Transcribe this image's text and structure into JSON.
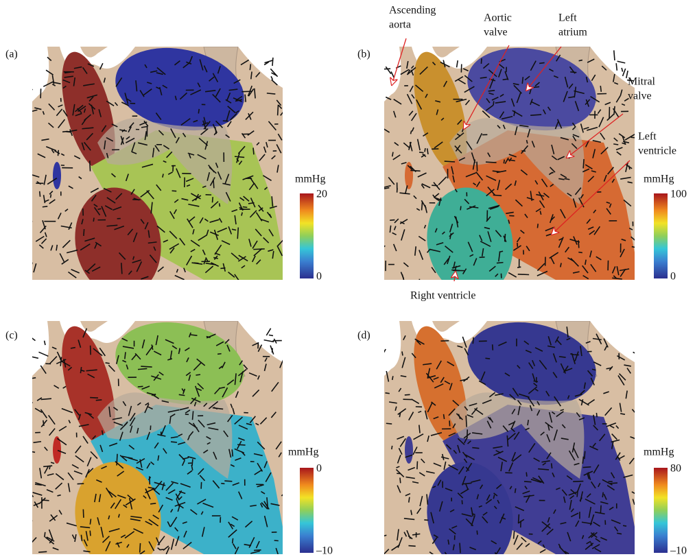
{
  "panels": [
    {
      "label": "(a)",
      "unit": "mmHg",
      "max": "20",
      "min": "0"
    },
    {
      "label": "(b)",
      "unit": "mmHg",
      "max": "100",
      "min": "0"
    },
    {
      "label": "(c)",
      "unit": "mmHg",
      "max": "0",
      "min": "–10"
    },
    {
      "label": "(d)",
      "unit": "mmHg",
      "max": "80",
      "min": "–10"
    }
  ],
  "annotations": {
    "ascending_aorta": [
      "Ascending",
      "aorta"
    ],
    "aortic_valve": [
      "Aortic",
      "valve"
    ],
    "left_atrium": [
      "Left",
      "atrium"
    ],
    "mitral_valve": [
      "Mitral",
      "valve"
    ],
    "left_ventricle": [
      "Left",
      "ventricle"
    ],
    "right_ventricle": "Right ventricle"
  }
}
